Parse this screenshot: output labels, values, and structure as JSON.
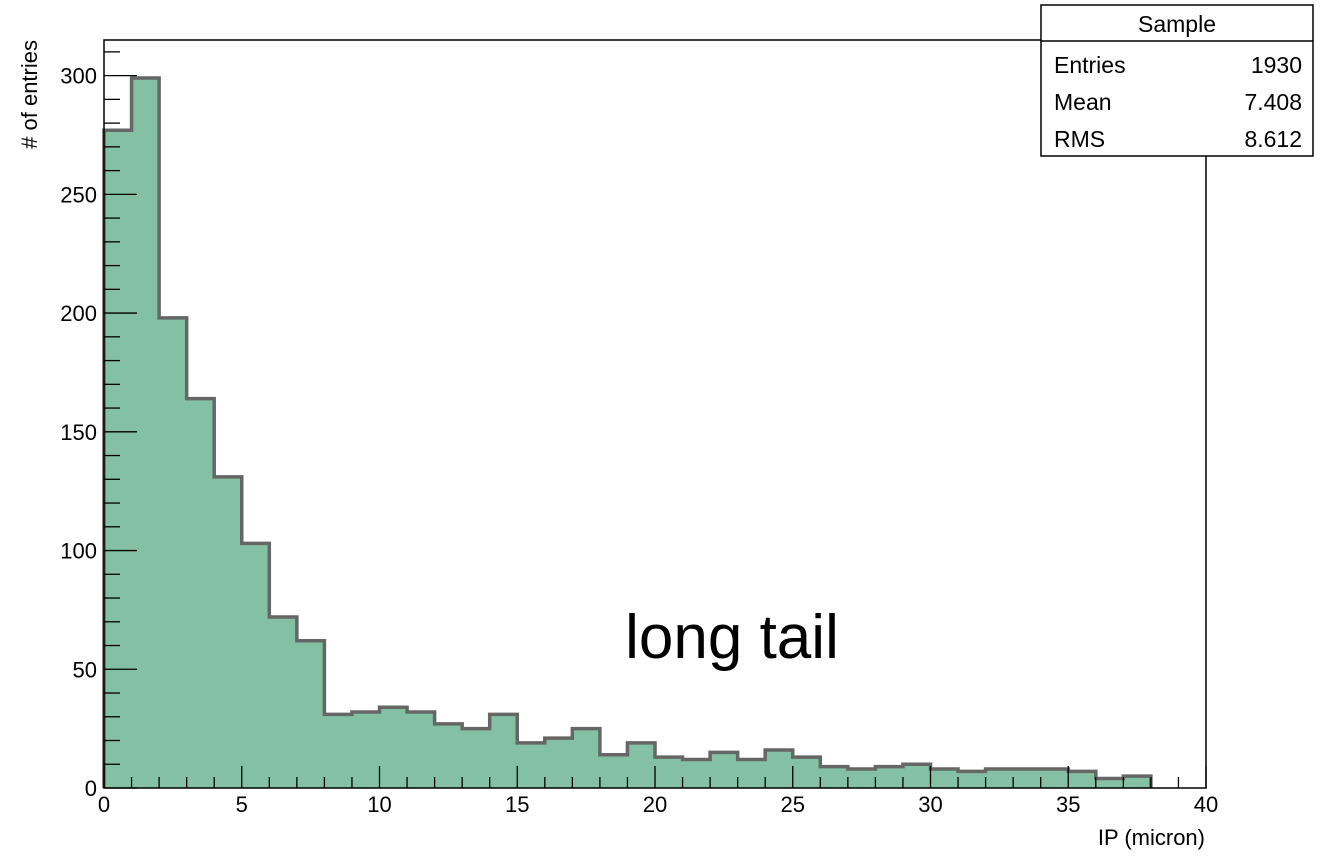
{
  "chart_data": {
    "type": "bar",
    "histogram": true,
    "xlabel": "IP (micron)",
    "ylabel": "# of entries",
    "xlim": [
      0,
      40
    ],
    "ylim": [
      0,
      315
    ],
    "bin_width": 1.0,
    "x_ticks": [
      "0",
      "5",
      "10",
      "15",
      "20",
      "25",
      "30",
      "35",
      "40"
    ],
    "y_ticks": [
      "0",
      "50",
      "100",
      "150",
      "200",
      "250",
      "300"
    ],
    "bin_edges_start": 0,
    "values": [
      277,
      299,
      198,
      164,
      131,
      103,
      72,
      62,
      31,
      32,
      34,
      32,
      27,
      25,
      31,
      19,
      21,
      25,
      14,
      19,
      13,
      12,
      15,
      12,
      16,
      13,
      9,
      8,
      9,
      10,
      8,
      7,
      8,
      8,
      8,
      7,
      4,
      5
    ],
    "fill_color": "#84c1a4",
    "line_color": "#666666",
    "grid": false,
    "annotation": "long tail",
    "stats_box": {
      "title": "Sample",
      "rows": [
        {
          "label": "Entries",
          "value": "1930"
        },
        {
          "label": "Mean",
          "value": "7.408"
        },
        {
          "label": "RMS",
          "value": "8.612"
        }
      ],
      "placement": "top-right"
    }
  }
}
